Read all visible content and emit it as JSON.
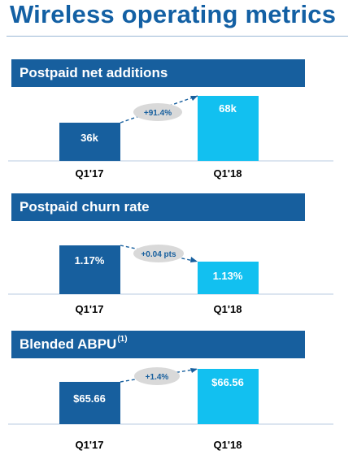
{
  "page": {
    "title": "Wireless operating metrics"
  },
  "colors": {
    "dark_blue": "#175f9e",
    "light_blue": "#12c0f0",
    "pill_gray": "#d9d9d9",
    "title_blue": "#1360a4"
  },
  "sections": [
    {
      "header": "Postpaid net additions",
      "header_superscript": "",
      "change": "+91.4%",
      "bars": [
        {
          "category": "Q1'17",
          "label": "36k"
        },
        {
          "category": "Q1'18",
          "label": "68k"
        }
      ]
    },
    {
      "header": "Postpaid churn rate",
      "header_superscript": "",
      "change": "+0.04 pts",
      "bars": [
        {
          "category": "Q1'17",
          "label": "1.17%"
        },
        {
          "category": "Q1'18",
          "label": "1.13%"
        }
      ]
    },
    {
      "header": "Blended ABPU",
      "header_superscript": "(1)",
      "change": "+1.4%",
      "bars": [
        {
          "category": "Q1'17",
          "label": "$65.66"
        },
        {
          "category": "Q1'18",
          "label": "$66.56"
        }
      ]
    }
  ],
  "chart_data": [
    {
      "type": "bar",
      "title": "Postpaid net additions",
      "categories": [
        "Q1'17",
        "Q1'18"
      ],
      "values": [
        36,
        68
      ],
      "units": "k",
      "annotation": "+91.4%"
    },
    {
      "type": "bar",
      "title": "Postpaid churn rate",
      "categories": [
        "Q1'17",
        "Q1'18"
      ],
      "values": [
        1.17,
        1.13
      ],
      "units": "%",
      "annotation": "+0.04 pts"
    },
    {
      "type": "bar",
      "title": "Blended ABPU",
      "categories": [
        "Q1'17",
        "Q1'18"
      ],
      "values": [
        65.66,
        66.56
      ],
      "units": "$",
      "annotation": "+1.4%"
    }
  ]
}
